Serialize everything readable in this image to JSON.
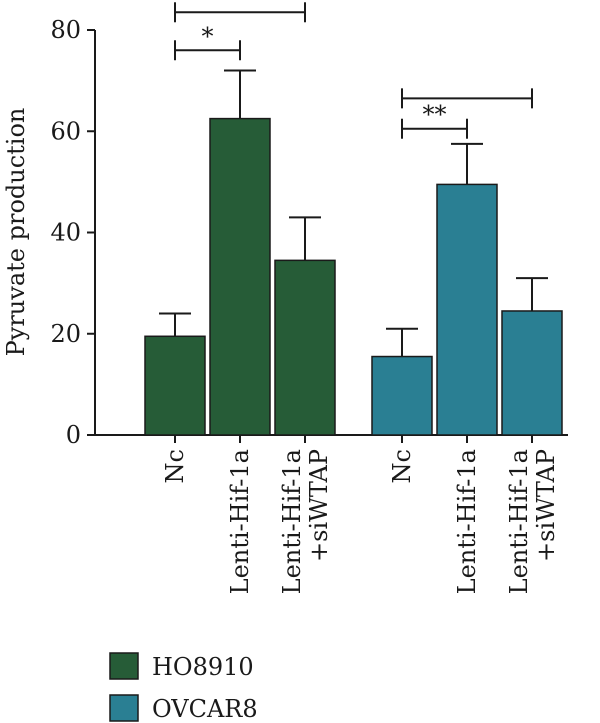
{
  "chart_data": {
    "type": "bar",
    "ylabel": "Pyruvate production",
    "xlabel": "",
    "ylim": [
      0,
      80
    ],
    "yticks": [
      0,
      20,
      40,
      60,
      80
    ],
    "groups": [
      {
        "name": "HO8910",
        "color": "#265c37",
        "bars": [
          {
            "label": [
              "Nc"
            ],
            "value": 19.5,
            "error": 4.5
          },
          {
            "label": [
              "Lenti-Hif-1a"
            ],
            "value": 62.5,
            "error": 9.5
          },
          {
            "label": [
              "Lenti-Hif-1a",
              "+siWTAP"
            ],
            "value": 34.5,
            "error": 8.5
          }
        ],
        "significance": [
          {
            "from": 0,
            "to": 1,
            "text": "*",
            "y": 76
          },
          {
            "from": 0,
            "to": 2,
            "text": "",
            "y": 83.5
          }
        ]
      },
      {
        "name": "OVCAR8",
        "color": "#2a7f93",
        "bars": [
          {
            "label": [
              "Nc"
            ],
            "value": 15.5,
            "error": 5.5
          },
          {
            "label": [
              "Lenti-Hif-1a"
            ],
            "value": 49.5,
            "error": 8
          },
          {
            "label": [
              "Lenti-Hif-1a",
              "+siWTAP"
            ],
            "value": 24.5,
            "error": 6.5
          }
        ],
        "significance": [
          {
            "from": 0,
            "to": 1,
            "text": "**",
            "y": 60.5
          },
          {
            "from": 0,
            "to": 2,
            "text": "",
            "y": 66.5
          }
        ]
      }
    ],
    "legend": {
      "position": "bottom-left",
      "entries": [
        {
          "name": "HO8910",
          "color": "#265c37"
        },
        {
          "name": "OVCAR8",
          "color": "#2a7f93"
        }
      ]
    },
    "grid": false
  }
}
